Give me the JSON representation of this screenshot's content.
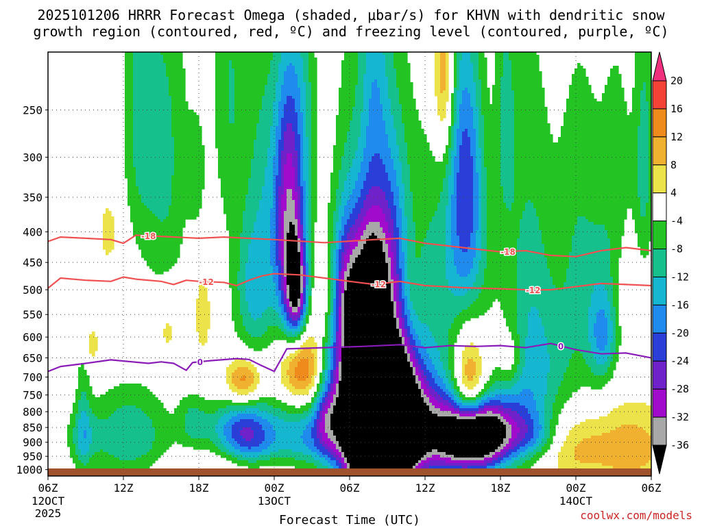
{
  "chart_data": {
    "type": "heatmap",
    "title_line1": "2025101206 HRRR Forecast Omega (shaded, μbar/s) for KHVN with dendritic snow",
    "title_line2": "growth region (contoured, red, ºC) and freezing level (contoured, purple, ºC)",
    "xlabel": "Forecast Time (UTC)",
    "ylabel": "",
    "credit": "coolwx.com/models",
    "credit_color": "#cc2222",
    "x_range_hours": [
      0,
      48
    ],
    "y_range_mb": [
      200,
      1025
    ],
    "y_ticks": [
      250,
      300,
      350,
      400,
      450,
      500,
      550,
      600,
      650,
      700,
      750,
      800,
      850,
      900,
      950,
      1000
    ],
    "x_ticks": [
      {
        "hour": 0,
        "label": "06Z",
        "sub1": "12OCT",
        "sub2": "2025"
      },
      {
        "hour": 6,
        "label": "12Z",
        "sub1": "",
        "sub2": ""
      },
      {
        "hour": 12,
        "label": "18Z",
        "sub1": "",
        "sub2": ""
      },
      {
        "hour": 18,
        "label": "00Z",
        "sub1": "13OCT",
        "sub2": ""
      },
      {
        "hour": 24,
        "label": "06Z",
        "sub1": "",
        "sub2": ""
      },
      {
        "hour": 30,
        "label": "12Z",
        "sub1": "",
        "sub2": ""
      },
      {
        "hour": 36,
        "label": "18Z",
        "sub1": "",
        "sub2": ""
      },
      {
        "hour": 42,
        "label": "00Z",
        "sub1": "14OCT",
        "sub2": ""
      },
      {
        "hour": 48,
        "label": "06Z",
        "sub1": "",
        "sub2": ""
      }
    ],
    "colorbar": {
      "labels": [
        "20",
        "16",
        "12",
        "8",
        "4",
        "-4",
        "-8",
        "-12",
        "-16",
        "-20",
        "-24",
        "-28",
        "-32",
        "-36"
      ],
      "bins": [
        {
          "range": [
            20,
            24
          ],
          "color": "#f0307f"
        },
        {
          "range": [
            16,
            20
          ],
          "color": "#f44336"
        },
        {
          "range": [
            12,
            16
          ],
          "color": "#ef8a1c"
        },
        {
          "range": [
            8,
            12
          ],
          "color": "#f0b030"
        },
        {
          "range": [
            4,
            8
          ],
          "color": "#ece24a"
        },
        {
          "range": [
            -4,
            4
          ],
          "color": "#ffffff"
        },
        {
          "range": [
            -8,
            -4
          ],
          "color": "#22c322"
        },
        {
          "range": [
            -12,
            -8
          ],
          "color": "#16c08c"
        },
        {
          "range": [
            -16,
            -12
          ],
          "color": "#14b7cf"
        },
        {
          "range": [
            -20,
            -16
          ],
          "color": "#1f8bec"
        },
        {
          "range": [
            -24,
            -20
          ],
          "color": "#2a3ed8"
        },
        {
          "range": [
            -28,
            -24
          ],
          "color": "#6f22c9"
        },
        {
          "range": [
            -32,
            -28
          ],
          "color": "#a10ccc"
        },
        {
          "range": [
            -36,
            -32
          ],
          "color": "#a8a8a8"
        },
        {
          "range": [
            -40,
            -36
          ],
          "color": "#000000"
        }
      ]
    },
    "omega_features": [
      {
        "t": 20.0,
        "p": 680,
        "rt": 1.3,
        "rp": 80,
        "peak": 22
      },
      {
        "t": 15.6,
        "p": 710,
        "rt": 1.0,
        "rp": 45,
        "peak": 16
      },
      {
        "t": 33.5,
        "p": 730,
        "rt": 0.9,
        "rp": 100,
        "peak": 20
      },
      {
        "t": 3.4,
        "p": 620,
        "rt": 0.5,
        "rp": 40,
        "peak": 7
      },
      {
        "t": 4.8,
        "p": 400,
        "rt": 0.6,
        "rp": 40,
        "peak": 6
      },
      {
        "t": 9.5,
        "p": 580,
        "rt": 0.7,
        "rp": 60,
        "peak": 6
      },
      {
        "t": 12.3,
        "p": 550,
        "rt": 0.6,
        "rp": 80,
        "peak": 6
      },
      {
        "t": 24.6,
        "p": 360,
        "rt": 0.7,
        "rp": 130,
        "peak": 6
      },
      {
        "t": 22.1,
        "p": 500,
        "rt": 0.7,
        "rp": 60,
        "peak": 6
      },
      {
        "t": 28.7,
        "p": 520,
        "rt": 0.8,
        "rp": 90,
        "peak": 6
      },
      {
        "t": 31.5,
        "p": 220,
        "rt": 0.6,
        "rp": 50,
        "peak": 14
      },
      {
        "t": 36.8,
        "p": 650,
        "rt": 0.6,
        "rp": 50,
        "peak": 6
      },
      {
        "t": 46.5,
        "p": 500,
        "rt": 0.8,
        "rp": 80,
        "peak": 6
      },
      {
        "t": 46.5,
        "p": 920,
        "rt": 2.5,
        "rp": 110,
        "peak": 10
      },
      {
        "t": 41.5,
        "p": 920,
        "rt": 2.0,
        "rp": 90,
        "peak": 8
      },
      {
        "t": 17.0,
        "p": 990,
        "rt": 6.0,
        "rp": 40,
        "peak": 5
      },
      {
        "t": 22.0,
        "p": 720,
        "rt": 1.0,
        "rp": 60,
        "peak": 6
      },
      {
        "t": 11.8,
        "p": 320,
        "rt": 0.5,
        "rp": 50,
        "peak": -6
      },
      {
        "t": 2.8,
        "p": 780,
        "rt": 0.4,
        "rp": 200,
        "peak": -6
      },
      {
        "t": 7.2,
        "p": 250,
        "rt": 0.9,
        "rp": 110,
        "peak": -8
      },
      {
        "t": 9.3,
        "p": 300,
        "rt": 1.3,
        "rp": 150,
        "peak": -9
      },
      {
        "t": 14.5,
        "p": 230,
        "rt": 1.0,
        "rp": 110,
        "peak": -8
      },
      {
        "t": 17.3,
        "p": 300,
        "rt": 1.0,
        "rp": 110,
        "peak": -8
      },
      {
        "t": 19.0,
        "p": 330,
        "rt": 0.7,
        "rp": 110,
        "peak": -12
      },
      {
        "t": 20.3,
        "p": 260,
        "rt": 0.8,
        "rp": 100,
        "peak": -8
      },
      {
        "t": 26.0,
        "p": 210,
        "rt": 0.8,
        "rp": 70,
        "peak": -8
      },
      {
        "t": 32.8,
        "p": 300,
        "rt": 0.8,
        "rp": 120,
        "peak": -12
      },
      {
        "t": 36.4,
        "p": 260,
        "rt": 0.6,
        "rp": 90,
        "peak": -8
      },
      {
        "t": 42.3,
        "p": 450,
        "rt": 1.3,
        "rp": 200,
        "peak": -8
      },
      {
        "t": 44.0,
        "p": 580,
        "rt": 0.8,
        "rp": 120,
        "peak": -8
      },
      {
        "t": 45.3,
        "p": 350,
        "rt": 1.0,
        "rp": 140,
        "peak": -6
      },
      {
        "t": 47.3,
        "p": 380,
        "rt": 0.6,
        "rp": 110,
        "peak": -6
      },
      {
        "t": 47.5,
        "p": 260,
        "rt": 0.5,
        "rp": 90,
        "peak": -6
      },
      {
        "t": 16.5,
        "p": 500,
        "rt": 1.2,
        "rp": 100,
        "peak": -14
      },
      {
        "t": 19.3,
        "p": 440,
        "rt": 0.9,
        "rp": 150,
        "peak": -20
      },
      {
        "t": 19.8,
        "p": 500,
        "rt": 0.6,
        "rp": 70,
        "peak": -26
      },
      {
        "t": 23.4,
        "p": 490,
        "rt": 0.8,
        "rp": 80,
        "peak": -10
      },
      {
        "t": 26.0,
        "p": 680,
        "rt": 1.8,
        "rp": 250,
        "peak": -16
      },
      {
        "t": 25.5,
        "p": 450,
        "rt": 1.0,
        "rp": 100,
        "peak": -8
      },
      {
        "t": 27.0,
        "p": 390,
        "rt": 0.9,
        "rp": 100,
        "peak": -8
      },
      {
        "t": 27.7,
        "p": 720,
        "rt": 1.0,
        "rp": 280,
        "peak": -16
      },
      {
        "t": 30.6,
        "p": 480,
        "rt": 1.5,
        "rp": 170,
        "peak": -8
      },
      {
        "t": 33.5,
        "p": 450,
        "rt": 1.3,
        "rp": 100,
        "peak": -10
      },
      {
        "t": 33.8,
        "p": 300,
        "rt": 0.8,
        "rp": 100,
        "peak": -10
      },
      {
        "t": 38.3,
        "p": 540,
        "rt": 1.4,
        "rp": 260,
        "peak": -10
      },
      {
        "t": 39.0,
        "p": 880,
        "rt": 1.3,
        "rp": 50,
        "peak": -8
      },
      {
        "t": 44.3,
        "p": 600,
        "rt": 0.8,
        "rp": 60,
        "peak": -8
      },
      {
        "t": 2.8,
        "p": 880,
        "rt": 0.9,
        "rp": 70,
        "peak": -8
      },
      {
        "t": 6.5,
        "p": 880,
        "rt": 2.2,
        "rp": 110,
        "peak": -12
      },
      {
        "t": 11.5,
        "p": 830,
        "rt": 0.8,
        "rp": 60,
        "peak": -8
      },
      {
        "t": 14.0,
        "p": 850,
        "rt": 1.5,
        "rp": 60,
        "peak": -8
      },
      {
        "t": 16.0,
        "p": 880,
        "rt": 1.5,
        "rp": 80,
        "peak": -20
      },
      {
        "t": 20.5,
        "p": 870,
        "rt": 2.2,
        "rp": 110,
        "peak": -16
      },
      {
        "t": 22.2,
        "p": 780,
        "rt": 0.8,
        "rp": 120,
        "peak": -18
      },
      {
        "t": 24.6,
        "p": 700,
        "rt": 1.1,
        "rp": 260,
        "peak": -38
      },
      {
        "t": 26.5,
        "p": 840,
        "rt": 1.9,
        "rp": 160,
        "peak": -40
      },
      {
        "t": 26.1,
        "p": 620,
        "rt": 0.7,
        "rp": 120,
        "peak": -28
      },
      {
        "t": 28.0,
        "p": 850,
        "rt": 2.0,
        "rp": 120,
        "peak": -24
      },
      {
        "t": 31.0,
        "p": 870,
        "rt": 3.0,
        "rp": 150,
        "peak": -14
      },
      {
        "t": 33.6,
        "p": 880,
        "rt": 2.0,
        "rp": 80,
        "peak": -38
      },
      {
        "t": 35.0,
        "p": 870,
        "rt": 1.8,
        "rp": 70,
        "peak": -16
      },
      {
        "t": 37.5,
        "p": 820,
        "rt": 1.5,
        "rp": 90,
        "peak": -8
      },
      {
        "t": 40.0,
        "p": 680,
        "rt": 1.5,
        "rp": 130,
        "peak": -6
      }
    ],
    "contours": [
      {
        "name": "-18",
        "color": "#f05050",
        "label_color": "#f05050",
        "label_hours": [
          8.0,
          36.6
        ],
        "points": [
          [
            0,
            415
          ],
          [
            1,
            408
          ],
          [
            3,
            410
          ],
          [
            5,
            412
          ],
          [
            6,
            418
          ],
          [
            7,
            405
          ],
          [
            9,
            407
          ],
          [
            12,
            410
          ],
          [
            14,
            408
          ],
          [
            18,
            412
          ],
          [
            22,
            417
          ],
          [
            26,
            412
          ],
          [
            28,
            410
          ],
          [
            30,
            418
          ],
          [
            33,
            425
          ],
          [
            36,
            432
          ],
          [
            38,
            430
          ],
          [
            40,
            438
          ],
          [
            42,
            440
          ],
          [
            44,
            430
          ],
          [
            46,
            425
          ],
          [
            48,
            430
          ]
        ]
      },
      {
        "name": "-12",
        "color": "#f05050",
        "label_color": "#f05050",
        "label_hours": [
          12.6,
          26.3,
          38.6
        ],
        "points": [
          [
            0,
            497
          ],
          [
            1,
            478
          ],
          [
            3,
            482
          ],
          [
            5,
            484
          ],
          [
            6,
            476
          ],
          [
            7,
            480
          ],
          [
            9,
            484
          ],
          [
            10,
            490
          ],
          [
            11,
            482
          ],
          [
            12,
            484
          ],
          [
            14,
            486
          ],
          [
            15,
            492
          ],
          [
            16,
            482
          ],
          [
            17,
            474
          ],
          [
            18,
            470
          ],
          [
            20,
            472
          ],
          [
            22,
            478
          ],
          [
            24,
            484
          ],
          [
            26,
            490
          ],
          [
            28,
            484
          ],
          [
            30,
            492
          ],
          [
            33,
            496
          ],
          [
            36,
            498
          ],
          [
            38,
            500
          ],
          [
            40,
            500
          ],
          [
            42,
            494
          ],
          [
            44,
            488
          ],
          [
            46,
            490
          ],
          [
            48,
            492
          ]
        ]
      },
      {
        "name": "0",
        "color": "#8a1bb8",
        "label_color": "#8a1bb8",
        "label_hours": [
          12.1,
          40.8
        ],
        "points": [
          [
            0,
            685
          ],
          [
            1,
            672
          ],
          [
            3,
            664
          ],
          [
            5,
            655
          ],
          [
            6,
            658
          ],
          [
            8,
            664
          ],
          [
            9,
            660
          ],
          [
            10,
            664
          ],
          [
            11,
            682
          ],
          [
            11.5,
            662
          ],
          [
            12,
            660
          ],
          [
            13,
            657
          ],
          [
            15,
            652
          ],
          [
            16,
            654
          ],
          [
            17,
            670
          ],
          [
            18,
            685
          ],
          [
            19,
            628
          ],
          [
            22,
            625
          ],
          [
            25,
            622
          ],
          [
            28,
            618
          ],
          [
            30,
            625
          ],
          [
            32,
            620
          ],
          [
            34,
            622
          ],
          [
            36,
            620
          ],
          [
            38,
            625
          ],
          [
            40,
            615
          ],
          [
            42,
            630
          ],
          [
            44,
            640
          ],
          [
            46,
            638
          ],
          [
            48,
            650
          ]
        ]
      }
    ]
  }
}
